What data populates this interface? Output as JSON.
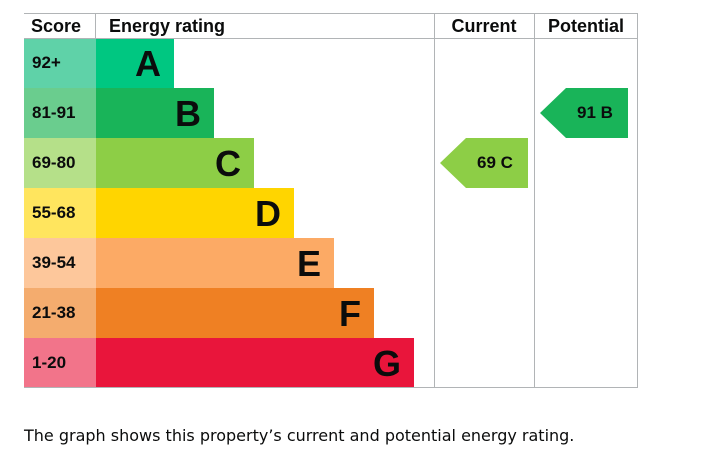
{
  "chart_data": {
    "type": "table",
    "headers": {
      "score": "Score",
      "rating": "Energy rating",
      "current": "Current",
      "potential": "Potential"
    },
    "bands": [
      {
        "score": "92+",
        "letter": "A",
        "color": "#00c781",
        "score_bg": "#5fd2a8"
      },
      {
        "score": "81-91",
        "letter": "B",
        "color": "#19b459",
        "score_bg": "#6acd8e"
      },
      {
        "score": "69-80",
        "letter": "C",
        "color": "#8dce46",
        "score_bg": "#b5e089"
      },
      {
        "score": "55-68",
        "letter": "D",
        "color": "#ffd500",
        "score_bg": "#ffe55e"
      },
      {
        "score": "39-54",
        "letter": "E",
        "color": "#fcaa65",
        "score_bg": "#fdc79b"
      },
      {
        "score": "21-38",
        "letter": "F",
        "color": "#ef8023",
        "score_bg": "#f4ac6e"
      },
      {
        "score": "1-20",
        "letter": "G",
        "color": "#e9153b",
        "score_bg": "#f2748a"
      }
    ],
    "current": {
      "value": 69,
      "letter": "C",
      "label": "69 C",
      "band": "C"
    },
    "potential": {
      "value": 91,
      "letter": "B",
      "label": "91 B",
      "band": "B"
    }
  },
  "caption": "The graph shows this property’s current and potential energy rating."
}
